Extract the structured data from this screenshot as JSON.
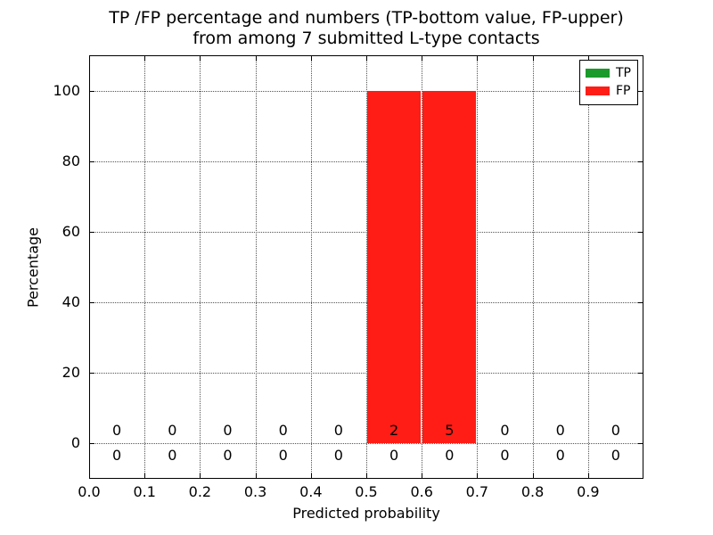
{
  "chart_data": {
    "type": "bar",
    "title_lines": [
      "TP /FP percentage and numbers (TP-bottom value, FP-upper)",
      "from among 7 submitted L-type contacts"
    ],
    "xlabel": "Predicted probability",
    "ylabel": "Percentage",
    "xlim": [
      0.0,
      1.0
    ],
    "ylim": [
      -10,
      110
    ],
    "x_tick_values": [
      0.0,
      0.1,
      0.2,
      0.3,
      0.4,
      0.5,
      0.6,
      0.7,
      0.8,
      0.9
    ],
    "x_tick_labels": [
      "0.0",
      "0.1",
      "0.2",
      "0.3",
      "0.4",
      "0.5",
      "0.6",
      "0.7",
      "0.8",
      "0.9"
    ],
    "y_tick_values": [
      0,
      20,
      40,
      60,
      80,
      100
    ],
    "y_tick_labels": [
      "0",
      "20",
      "40",
      "60",
      "80",
      "100"
    ],
    "grid": true,
    "legend_position": "upper right",
    "bin_width": 0.1,
    "bin_starts": [
      0.0,
      0.1,
      0.2,
      0.3,
      0.4,
      0.5,
      0.6,
      0.7,
      0.8,
      0.9
    ],
    "series": [
      {
        "name": "TP",
        "color": "#1a9a2a",
        "percent": [
          0,
          0,
          0,
          0,
          0,
          0,
          0,
          0,
          0,
          0
        ],
        "counts": [
          0,
          0,
          0,
          0,
          0,
          0,
          0,
          0,
          0,
          0
        ],
        "count_row": "bottom"
      },
      {
        "name": "FP",
        "color": "#ff1d16",
        "percent": [
          0,
          0,
          0,
          0,
          0,
          100,
          100,
          0,
          0,
          0
        ],
        "counts": [
          0,
          0,
          0,
          0,
          0,
          2,
          5,
          0,
          0,
          0
        ],
        "count_row": "top"
      }
    ]
  }
}
